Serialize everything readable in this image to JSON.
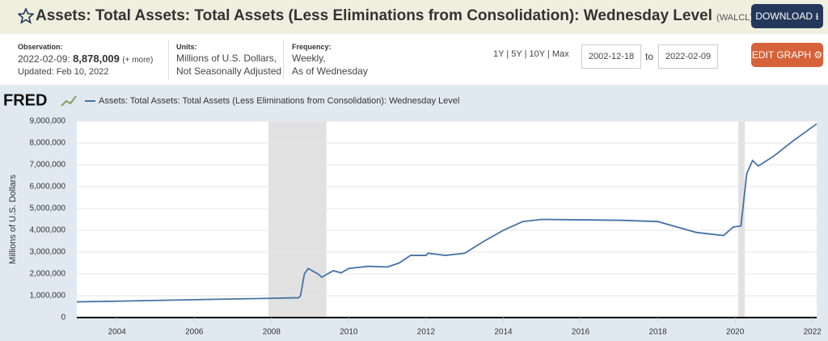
{
  "header": {
    "title": "Assets: Total Assets: Total Assets (Less Eliminations from Consolidation): Wednesday Level",
    "series_id": "(WALCL)",
    "download": "DOWNLOAD"
  },
  "meta": {
    "observation_label": "Observation:",
    "observation_date": "2022-02-09:",
    "observation_value": "8,878,009",
    "more": "(+ more)",
    "updated": "Updated: Feb 10, 2022",
    "units_label": "Units:",
    "units_1": "Millions of U.S. Dollars,",
    "units_2": "Not Seasonally Adjusted",
    "frequency_label": "Frequency:",
    "frequency_1": "Weekly,",
    "frequency_2": "As of Wednesday",
    "ranges": [
      "1Y",
      "5Y",
      "10Y",
      "Max"
    ],
    "start_date": "2002-12-18",
    "to": "to",
    "end_date": "2022-02-09",
    "edit_graph": "EDIT GRAPH"
  },
  "chart_data": {
    "type": "line",
    "brand": "FRED",
    "y_label": "Millions of U.S. Dollars",
    "x": [
      2002.96,
      2004,
      2006,
      2007.9,
      2008.7,
      2008.75,
      2008.85,
      2008.95,
      2009.1,
      2009.2,
      2009.3,
      2009.5,
      2009.6,
      2009.8,
      2010,
      2010.5,
      2011,
      2011.3,
      2011.6,
      2012,
      2012.05,
      2012.5,
      2013,
      2013.5,
      2014,
      2014.5,
      2015,
      2016,
      2017,
      2018,
      2019,
      2019.7,
      2019.95,
      2020.15,
      2020.2,
      2020.3,
      2020.45,
      2020.6,
      2021,
      2021.5,
      2022.11
    ],
    "series": [
      {
        "name": "Assets: Total Assets: Total Assets (Less Eliminations from Consolidation): Wednesday Level",
        "color": "#4572a7",
        "values": [
          720000,
          750000,
          820000,
          880000,
          910000,
          1000000,
          2000000,
          2250000,
          2100000,
          2000000,
          1850000,
          2050000,
          2150000,
          2050000,
          2250000,
          2350000,
          2320000,
          2500000,
          2850000,
          2850000,
          2950000,
          2850000,
          2950000,
          3500000,
          4000000,
          4400000,
          4500000,
          4480000,
          4460000,
          4400000,
          3900000,
          3760000,
          4150000,
          4200000,
          5000000,
          6600000,
          7200000,
          6950000,
          7400000,
          8100000,
          8878009
        ]
      }
    ],
    "recessions": [
      [
        2007.92,
        2009.42
      ],
      [
        2020.08,
        2020.25
      ]
    ],
    "xlim": [
      2002.96,
      2022.11
    ],
    "xticks": [
      2004,
      2006,
      2008,
      2010,
      2012,
      2014,
      2016,
      2018,
      2020,
      2022
    ],
    "ylim": [
      0,
      9000000
    ],
    "yticks": [
      0,
      {
        "value": 1000000,
        "label": "1,000,000"
      },
      {
        "value": 2000000,
        "label": "2,000,000"
      },
      {
        "value": 3000000,
        "label": "3,000,000"
      },
      {
        "value": 4000000,
        "label": "4,000,000"
      },
      {
        "value": 5000000,
        "label": "5,000,000"
      },
      {
        "value": 6000000,
        "label": "6,000,000"
      },
      {
        "value": 7000000,
        "label": "7,000,000"
      },
      {
        "value": 8000000,
        "label": "8,000,000"
      },
      {
        "value": 9000000,
        "label": "9,000,000"
      }
    ],
    "grid": true
  }
}
